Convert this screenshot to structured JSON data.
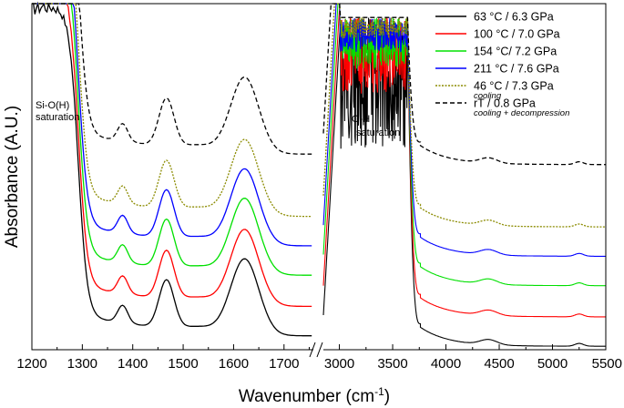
{
  "chart_data": {
    "type": "line",
    "title": "",
    "xlabel": "Wavenumber (cm",
    "xlabel_sup": "-1",
    "xlabel_end": ")",
    "ylabel": "Absorbance (A.U.)",
    "x_ticks_left": [
      "1200",
      "1300",
      "1400",
      "1500",
      "1600",
      "1700"
    ],
    "x_ticks_right": [
      "3000",
      "3500",
      "4000",
      "4500",
      "5000",
      "5500"
    ],
    "xlim_left": [
      1200,
      1760
    ],
    "xlim_right": [
      2850,
      5500
    ],
    "axis_break": "//",
    "y_ticks_shown": false,
    "legend_position": "top-right",
    "annotations": {
      "sio_line1": "Si-O(H)",
      "sio_line2": "saturation",
      "oh_line1": "O-H",
      "oh_line2": "saturation"
    },
    "series": [
      {
        "name": "63 °C / 6.3 GPa",
        "note": "",
        "color": "#000000",
        "dash": "solid",
        "offset": 0.0
      },
      {
        "name": "100 °C / 7.0 GPa",
        "note": "",
        "color": "#ff0000",
        "dash": "solid",
        "offset": 0.085
      },
      {
        "name": "154 °C/ 7.2 GPa",
        "note": "",
        "color": "#00e000",
        "dash": "solid",
        "offset": 0.175
      },
      {
        "name": "211 °C / 7.6 GPa",
        "note": "",
        "color": "#0000ff",
        "dash": "solid",
        "offset": 0.26
      },
      {
        "name": "46 °C / 7.3 GPa",
        "note": "cooling",
        "color": "#8b8b00",
        "dash": "dotted",
        "offset": 0.345
      },
      {
        "name": "rT / 0.8 GPa",
        "note": "cooling + decompression",
        "color": "#000000",
        "dash": "dashed",
        "offset": 0.525
      }
    ]
  }
}
